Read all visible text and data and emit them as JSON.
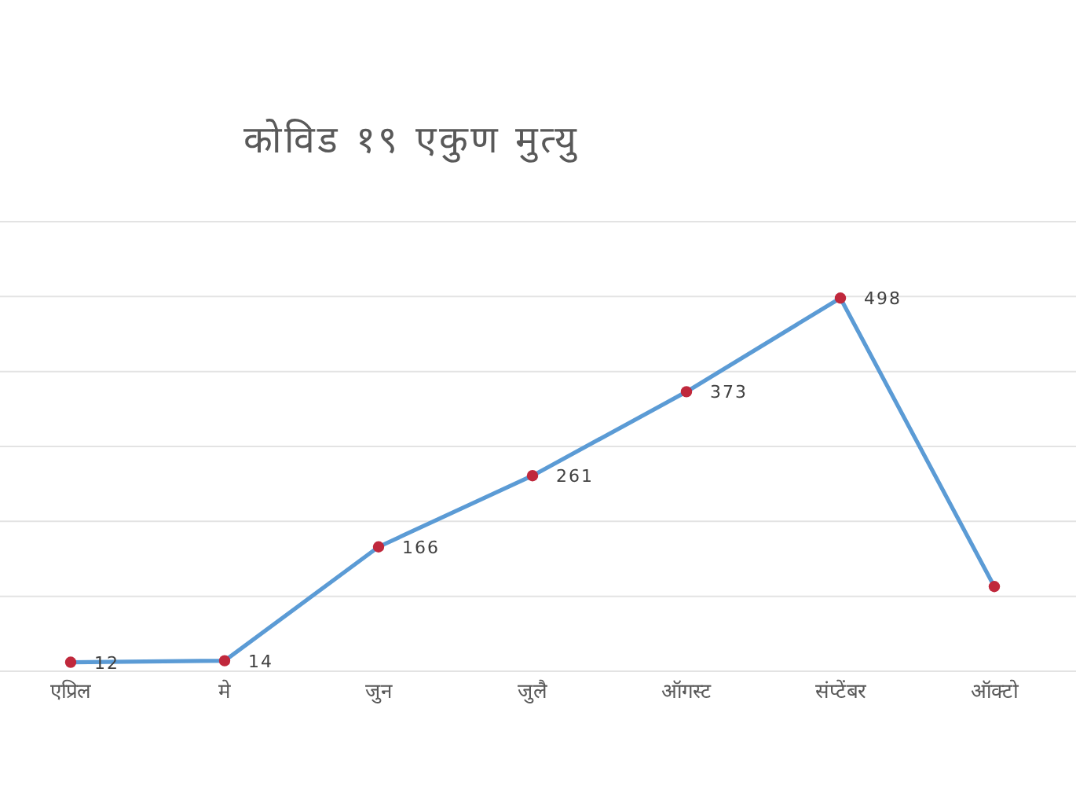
{
  "chart_data": {
    "type": "line",
    "title": "कोविड १९ एकुण मुत्यु",
    "categories": [
      "एप्रिल",
      "मे",
      "जुन",
      "जुलै",
      "ऑगस्ट",
      "संप्टेंबर",
      "ऑक्टो"
    ],
    "series": [
      {
        "color": "#5b9bd5",
        "values": [
          12,
          14,
          166,
          261,
          373,
          498,
          113
        ],
        "value_labels": [
          "12",
          "14",
          "166",
          "261",
          "373",
          "498",
          null
        ]
      }
    ],
    "ylim": [
      0,
      600
    ],
    "yticks": [
      {
        "value": 0,
        "label": null
      },
      {
        "value": 100,
        "label": null
      },
      {
        "value": 200,
        "label": null
      },
      {
        "value": 300,
        "label": null
      },
      {
        "value": 400,
        "label": null
      },
      {
        "value": 500,
        "label": null
      },
      {
        "value": 600,
        "label": null
      }
    ],
    "grid": "y",
    "tick_labels": "x",
    "marker": "circle",
    "line_style": "solid"
  }
}
